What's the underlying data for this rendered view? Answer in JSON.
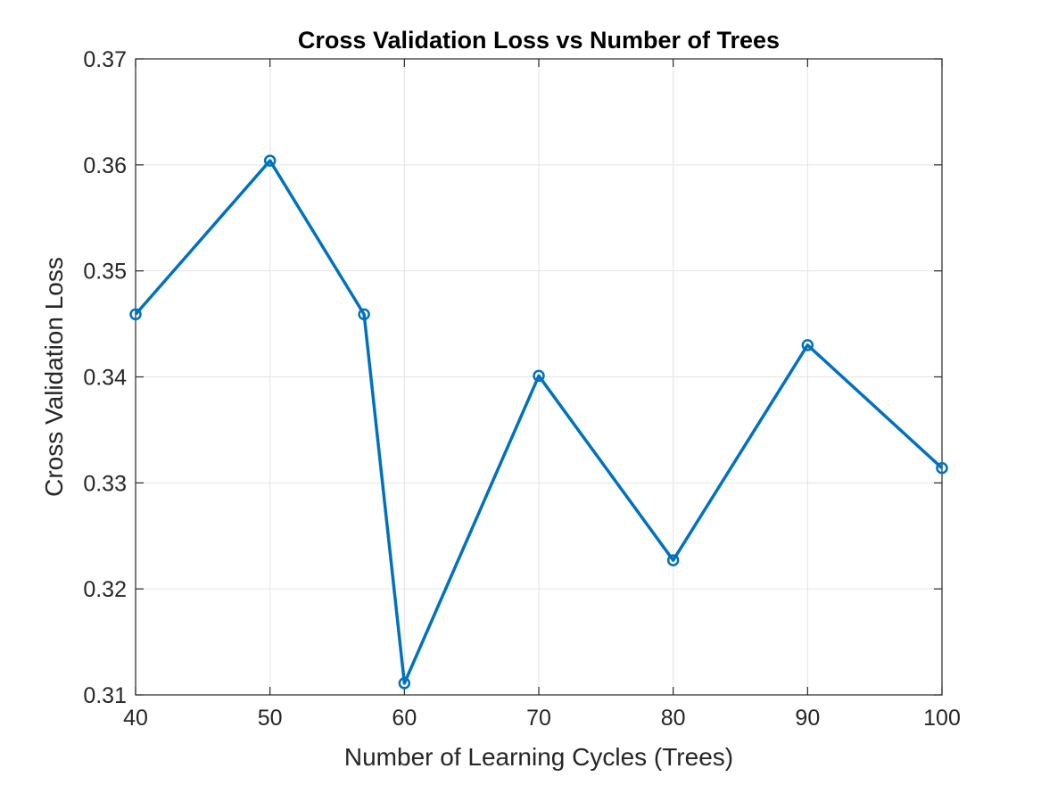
{
  "chart_data": {
    "type": "line",
    "title": "Cross Validation Loss vs Number of Trees",
    "xlabel": "Number of Learning Cycles (Trees)",
    "ylabel": "Cross Validation Loss",
    "xlim": [
      40,
      100
    ],
    "ylim": [
      0.31,
      0.37
    ],
    "xticks": [
      40,
      50,
      60,
      70,
      80,
      90,
      100
    ],
    "xtick_labels": [
      "40",
      "50",
      "60",
      "70",
      "80",
      "90",
      "100"
    ],
    "yticks": [
      0.31,
      0.32,
      0.33,
      0.34,
      0.35,
      0.36,
      0.37
    ],
    "ytick_labels": [
      "0.31",
      "0.32",
      "0.33",
      "0.34",
      "0.35",
      "0.36",
      "0.37"
    ],
    "grid": true,
    "marker": "circle",
    "series": [
      {
        "color": "#0072BD",
        "x": [
          40,
          50,
          57,
          60,
          70,
          80,
          90,
          100
        ],
        "y": [
          0.3459,
          0.3604,
          0.3459,
          0.3111,
          0.3401,
          0.3227,
          0.343,
          0.3314
        ]
      }
    ]
  }
}
